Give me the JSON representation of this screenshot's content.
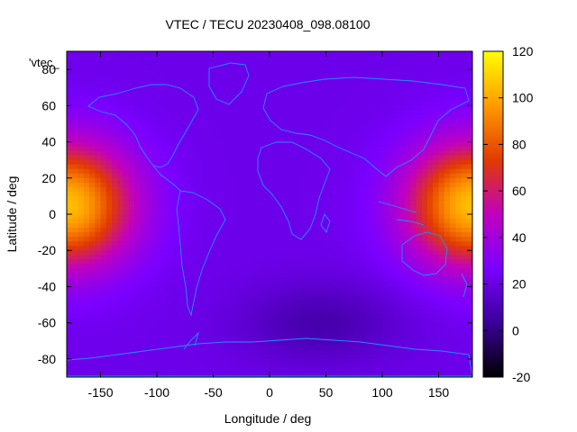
{
  "chart_data": {
    "type": "heatmap",
    "title": "VTEC / TECU 20230408_098.08100",
    "xlabel": "Longitude / deg",
    "ylabel": "Latitude / deg",
    "legend_label": "'vtec_",
    "xlim": [
      -180,
      180
    ],
    "ylim": [
      -90,
      90
    ],
    "xticks": [
      -150,
      -100,
      -50,
      0,
      50,
      100,
      150
    ],
    "yticks": [
      -80,
      -60,
      -40,
      -20,
      0,
      20,
      40,
      60,
      80
    ],
    "colorbar": {
      "range": [
        -20,
        120
      ],
      "ticks": [
        -20,
        0,
        20,
        40,
        60,
        80,
        100,
        120
      ],
      "palette": [
        "#000000",
        "#3a0099",
        "#7a00ff",
        "#c100c0",
        "#e23a00",
        "#ff9a00",
        "#ffff00"
      ]
    },
    "grid": false,
    "peaks": [
      {
        "lon": -180,
        "lat": 5,
        "vtec": 105
      },
      {
        "lon": 180,
        "lat": 5,
        "vtec": 105
      }
    ],
    "minimum": {
      "lon": 45,
      "lat": -60,
      "vtec": 8
    },
    "coastline_color": "#1e90ff"
  }
}
